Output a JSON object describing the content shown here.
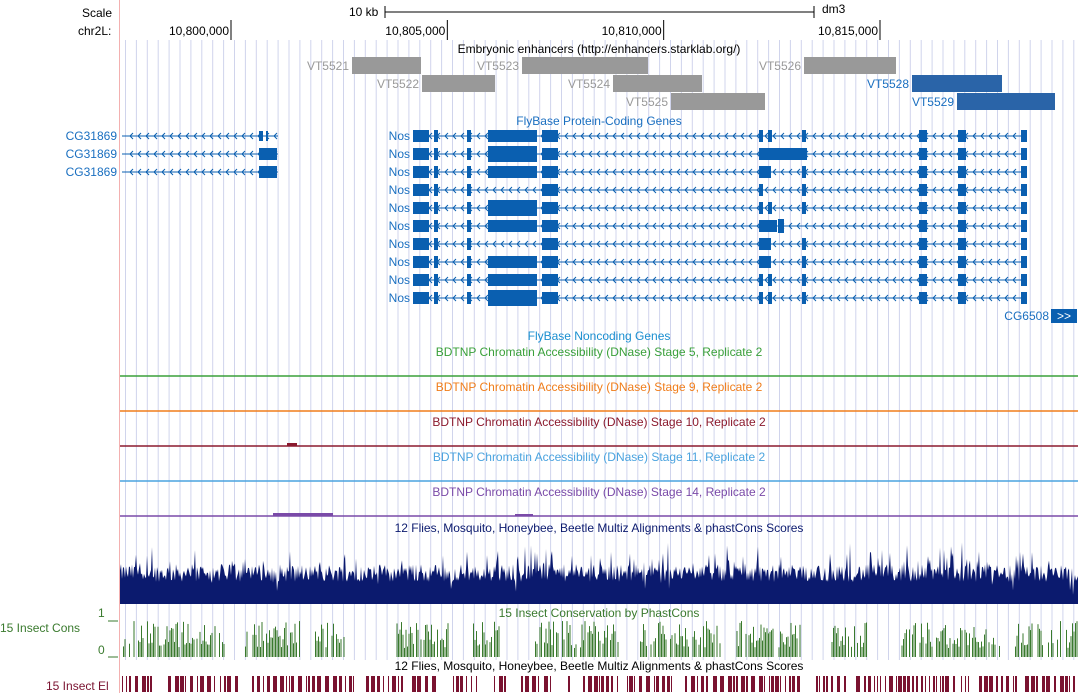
{
  "header": {
    "scale_label": "Scale",
    "scale_bar_label": "10 kb",
    "assembly": "dm3",
    "chrom_label": "chr2L:",
    "ticks": [
      {
        "label": "10,800,000",
        "pos": 10800000
      },
      {
        "label": "10,805,000",
        "pos": 10805000
      },
      {
        "label": "10,810,000",
        "pos": 10810000
      },
      {
        "label": "10,815,000",
        "pos": 10815000
      }
    ]
  },
  "enhancers": {
    "title": "Embryonic enhancers (http://enhancers.starklab.org/)",
    "items": [
      {
        "name": "VT5521",
        "row": 0,
        "style": "gray"
      },
      {
        "name": "VT5522",
        "row": 1,
        "style": "gray"
      },
      {
        "name": "VT5523",
        "row": 0,
        "style": "gray"
      },
      {
        "name": "VT5524",
        "row": 1,
        "style": "gray"
      },
      {
        "name": "VT5525",
        "row": 2,
        "style": "gray"
      },
      {
        "name": "VT5526",
        "row": 0,
        "style": "gray"
      },
      {
        "name": "VT5528",
        "row": 1,
        "style": "blue"
      },
      {
        "name": "VT5529",
        "row": 2,
        "style": "blue"
      }
    ]
  },
  "protein_genes": {
    "title": "FlyBase Protein-Coding Genes",
    "cg31869_labels": [
      "CG31869",
      "CG31869",
      "CG31869"
    ],
    "nos_labels": [
      "Nos",
      "Nos",
      "Nos",
      "Nos",
      "Nos",
      "Nos",
      "Nos",
      "Nos",
      "Nos",
      "Nos"
    ],
    "cg6508_label": "CG6508",
    "more_arrow": ">>"
  },
  "noncoding": {
    "title": "FlyBase Noncoding Genes"
  },
  "dnase": [
    {
      "title": "BDTNP Chromatin Accessibility (DNase) Stage 5, Replicate 2",
      "color": "#3aa03a"
    },
    {
      "title": "BDTNP Chromatin Accessibility (DNase) Stage 9, Replicate 2",
      "color": "#f07d1a"
    },
    {
      "title": "BDTNP Chromatin Accessibility (DNase) Stage 10, Replicate 2",
      "color": "#8b1a2e"
    },
    {
      "title": "BDTNP Chromatin Accessibility (DNase) Stage 11, Replicate 2",
      "color": "#4aa3df"
    },
    {
      "title": "BDTNP Chromatin Accessibility (DNase) Stage 14, Replicate 2",
      "color": "#7a4aa8"
    }
  ],
  "multiz": {
    "title": "12 Flies, Mosquito, Honeybee, Beetle Multiz Alignments & phastCons Scores"
  },
  "phastcons": {
    "title": "15 Insect Conservation by PhastCons",
    "side_label": "15 Insect Cons",
    "y_max": "1",
    "y_min": "0"
  },
  "elements": {
    "title": "12 Flies, Mosquito, Honeybee, Beetle Multiz Alignments & phastCons Scores",
    "side_label": "15 Insect El"
  },
  "colors": {
    "gene_blue": "#0a5fb0",
    "enhancer_gray": "#999999",
    "enhancer_blue": "#2a64a8",
    "multiz_navy": "#0b1a6e",
    "cons_green": "#3a7a2e",
    "elements_maroon": "#7a1230",
    "guide_line": "#d0d4ec",
    "left_border": "#f3b0b0"
  }
}
